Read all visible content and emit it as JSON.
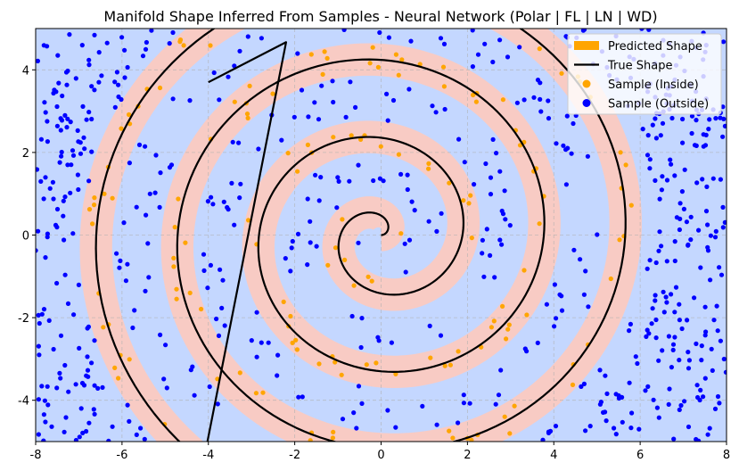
{
  "chart_data": {
    "type": "scatter",
    "title": "Manifold Shape Inferred From Samples - Neural Network (Polar | FL | LN | WD)",
    "xlabel": "",
    "ylabel": "",
    "xlim": [
      -8,
      8
    ],
    "ylim": [
      -5,
      5
    ],
    "xticks": [
      "-8",
      "-6",
      "-4",
      "-2",
      "0",
      "2",
      "4",
      "6",
      "8"
    ],
    "yticks": [
      "-4",
      "-2",
      "0",
      "2",
      "4"
    ],
    "grid": true,
    "legend_position": "top-right",
    "legend": [
      {
        "label": "Predicted Shape",
        "kind": "patch",
        "color": "#ffa500"
      },
      {
        "label": "True Shape",
        "kind": "line",
        "color": "#000000"
      },
      {
        "label": "Sample (Inside)",
        "kind": "dot",
        "color": "#ffa500"
      },
      {
        "label": "Sample (Outside)",
        "kind": "dot",
        "color": "#0000ff"
      }
    ],
    "background_region_color": "#c4d7ff",
    "predicted_region_color": "#f8cbc4",
    "true_shape": {
      "type": "archimedean-spiral",
      "r_equation": "r = 0.3 * theta",
      "theta_range": [
        0,
        22.94
      ],
      "closing_segment": [
        [
          -2.2,
          4.67
        ],
        [
          -4.0,
          3.7
        ]
      ]
    },
    "predicted_shape_band_width": 0.75,
    "series": [
      {
        "name": "Sample (Inside)",
        "color": "#ffa500",
        "count": 150,
        "note": "points lying within the spiral band"
      },
      {
        "name": "Sample (Outside)",
        "color": "#0000ff",
        "count": 620,
        "note": "points outside the band"
      }
    ]
  }
}
